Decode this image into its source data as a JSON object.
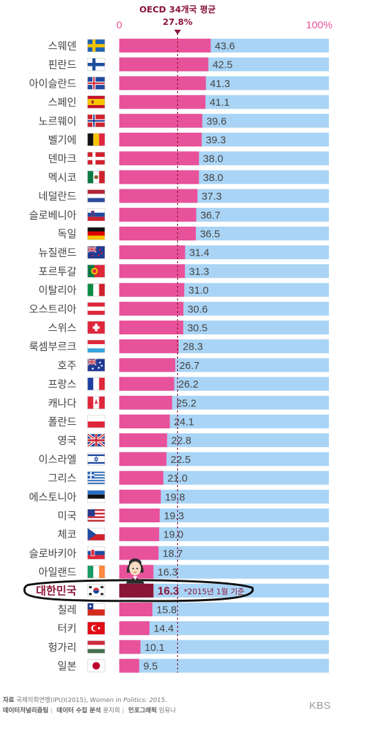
{
  "chart_data": {
    "type": "bar",
    "orientation": "horizontal",
    "xlim": [
      0,
      100
    ],
    "axis_labels": {
      "min": "0",
      "max": "100%"
    },
    "average": {
      "label": "OECD 34개국 평균",
      "value": 27.8,
      "value_label": "27.8%"
    },
    "highlight": {
      "category": "대한민국",
      "note": "*2015년 1월 기준"
    },
    "categories": [
      "스웨덴",
      "핀란드",
      "아이슬란드",
      "스페인",
      "노르웨이",
      "벨기에",
      "덴마크",
      "멕시코",
      "네덜란드",
      "슬로베니아",
      "독일",
      "뉴질랜드",
      "포르투갈",
      "이탈리아",
      "오스트리아",
      "스위스",
      "룩셈부르크",
      "호주",
      "프랑스",
      "캐나다",
      "폴란드",
      "영국",
      "이스라엘",
      "그리스",
      "에스토니아",
      "미국",
      "체코",
      "슬로바키아",
      "아일랜드",
      "대한민국",
      "칠레",
      "터키",
      "헝가리",
      "일본"
    ],
    "values": [
      43.6,
      42.5,
      41.3,
      41.1,
      39.6,
      39.3,
      38.0,
      38.0,
      37.3,
      36.7,
      36.5,
      31.4,
      31.3,
      31.0,
      30.6,
      30.5,
      28.3,
      26.7,
      26.2,
      25.2,
      24.1,
      22.8,
      22.5,
      21.0,
      19.8,
      19.3,
      19.0,
      18.7,
      16.3,
      16.3,
      15.8,
      14.4,
      10.1,
      9.5
    ],
    "flags": [
      "sweden-flag-icon",
      "finland-flag-icon",
      "iceland-flag-icon",
      "spain-flag-icon",
      "norway-flag-icon",
      "belgium-flag-icon",
      "denmark-flag-icon",
      "mexico-flag-icon",
      "netherlands-flag-icon",
      "slovenia-flag-icon",
      "germany-flag-icon",
      "new-zealand-flag-icon",
      "portugal-flag-icon",
      "italy-flag-icon",
      "austria-flag-icon",
      "switzerland-flag-icon",
      "luxembourg-flag-icon",
      "australia-flag-icon",
      "france-flag-icon",
      "canada-flag-icon",
      "poland-flag-icon",
      "uk-flag-icon",
      "israel-flag-icon",
      "greece-flag-icon",
      "estonia-flag-icon",
      "usa-flag-icon",
      "czech-flag-icon",
      "slovakia-flag-icon",
      "ireland-flag-icon",
      "korea-flag-icon",
      "chile-flag-icon",
      "turkey-flag-icon",
      "hungary-flag-icon",
      "japan-flag-icon"
    ],
    "colors": {
      "bar": "#e8529a",
      "highlight_bar": "#8b1538",
      "track": "#a9d4f5",
      "axis_text": "#e8529a",
      "average": "#8b1538"
    }
  },
  "footer": {
    "source_label": "자료",
    "source_text": "국제의회연맹(IPU)(2015),",
    "source_title": "Women in Politics: 2015.",
    "credits": [
      {
        "role": "데이터저널리즘팀",
        "name": ""
      },
      {
        "role": "데이터 수집 분석",
        "name": "윤지희"
      },
      {
        "role": "인포그래픽",
        "name": "임유나"
      }
    ],
    "brand": "KBS"
  }
}
